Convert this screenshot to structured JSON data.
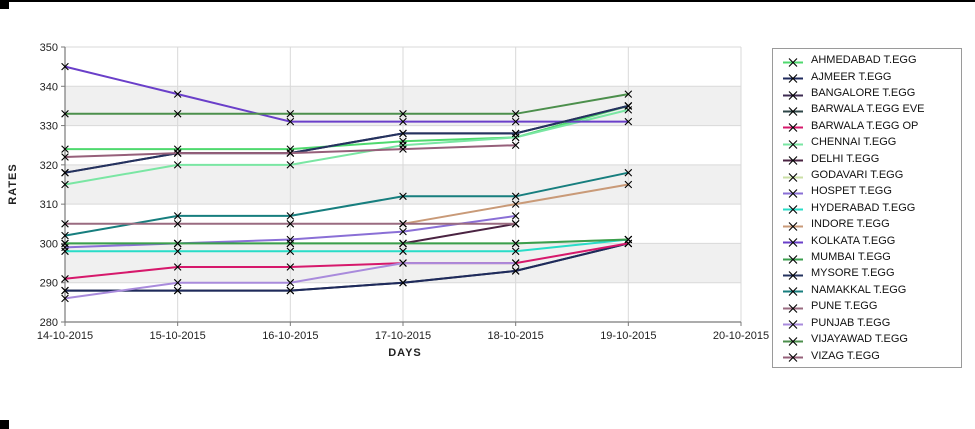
{
  "chart_data": {
    "type": "line",
    "title": "",
    "xlabel": "DAYS",
    "ylabel": "RATES",
    "ylim": [
      280,
      350
    ],
    "y_ticks": [
      280,
      290,
      300,
      310,
      320,
      330,
      340,
      350
    ],
    "x_labels": [
      "14-10-2015",
      "15-10-2015",
      "16-10-2015",
      "17-10-2015",
      "18-10-2015",
      "19-10-2015",
      "20-10-2015"
    ],
    "grid": "on",
    "band_color": "#f0f0f0",
    "gridline_color": "#d9d9d9",
    "axis_color": "#7a7a7a",
    "marker": "x",
    "marker_color": "#000000",
    "legend_position": "right",
    "series": [
      {
        "name": "AHMEDABAD T.EGG",
        "color": "#4fd96e",
        "z": 0,
        "values": [
          324,
          324,
          324,
          326,
          327,
          335,
          null
        ]
      },
      {
        "name": "AJMEER T.EGG",
        "color": "#1f2a5c",
        "z": 0,
        "values": [
          288,
          288,
          288,
          290,
          293,
          300,
          null
        ]
      },
      {
        "name": "BANGALORE T.EGG",
        "color": "#3d2b52",
        "z": -1,
        "values": [
          318,
          323,
          323,
          328,
          328,
          335,
          null
        ]
      },
      {
        "name": "BARWALA T.EGG EVE",
        "color": "#2e4647",
        "z": -1,
        "values": [
          288,
          288,
          288,
          290,
          293,
          300,
          null
        ]
      },
      {
        "name": "BARWALA T.EGG OP",
        "color": "#d6186b",
        "z": 0,
        "values": [
          291,
          294,
          294,
          295,
          295,
          300,
          null
        ]
      },
      {
        "name": "CHENNAI T.EGG",
        "color": "#7ae6a3",
        "z": 0,
        "values": [
          315,
          320,
          320,
          325,
          327,
          334,
          null
        ]
      },
      {
        "name": "DELHI T.EGG",
        "color": "#4a2342",
        "z": 0,
        "values": [
          null,
          null,
          null,
          300,
          305,
          null,
          null
        ]
      },
      {
        "name": "GODAVARI T.EGG",
        "color": "#cbdfa6",
        "z": -1,
        "values": [
          300,
          300,
          300,
          300,
          300,
          301,
          null
        ]
      },
      {
        "name": "HOSPET T.EGG",
        "color": "#8a6fd6",
        "z": 0,
        "values": [
          299,
          300,
          301,
          303,
          307,
          null,
          null
        ]
      },
      {
        "name": "HYDERABAD T.EGG",
        "color": "#29dcc7",
        "z": 0,
        "values": [
          298,
          298,
          298,
          298,
          298,
          301,
          null
        ]
      },
      {
        "name": "INDORE T.EGG",
        "color": "#c99a78",
        "z": 0,
        "values": [
          null,
          null,
          null,
          305,
          310,
          315,
          null
        ]
      },
      {
        "name": "KOLKATA T.EGG",
        "color": "#6a3fc9",
        "z": 0,
        "values": [
          345,
          338,
          331,
          331,
          331,
          331,
          null
        ]
      },
      {
        "name": "MUMBAI T.EGG",
        "color": "#3a9e4d",
        "z": 0,
        "values": [
          300,
          300,
          300,
          300,
          300,
          301,
          null
        ]
      },
      {
        "name": "MYSORE T.EGG",
        "color": "#24335f",
        "z": 0,
        "values": [
          318,
          323,
          323,
          328,
          328,
          335,
          null
        ]
      },
      {
        "name": "NAMAKKAL T.EGG",
        "color": "#177e7e",
        "z": 0,
        "values": [
          302,
          307,
          307,
          312,
          312,
          318,
          null
        ]
      },
      {
        "name": "PUNE T.EGG",
        "color": "#9a6b80",
        "z": 0,
        "values": [
          305,
          305,
          305,
          305,
          305,
          null,
          null
        ]
      },
      {
        "name": "PUNJAB T.EGG",
        "color": "#a98bdc",
        "z": 0,
        "values": [
          286,
          290,
          290,
          295,
          295,
          null,
          null
        ]
      },
      {
        "name": "VIJAYAWAD T.EGG",
        "color": "#4c8f4c",
        "z": 0,
        "values": [
          333,
          333,
          333,
          333,
          333,
          338,
          null
        ]
      },
      {
        "name": "VIZAG T.EGG",
        "color": "#96607a",
        "z": 0,
        "values": [
          322,
          323,
          323,
          324,
          325,
          null,
          null
        ]
      }
    ]
  }
}
